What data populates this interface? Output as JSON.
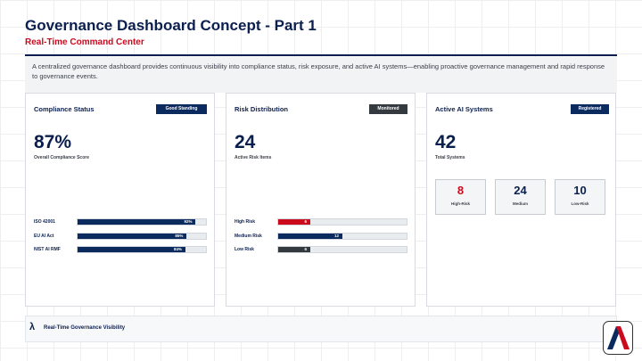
{
  "header": {
    "title": "Governance Dashboard Concept - Part 1",
    "subtitle": "Real-Time Command Center",
    "intro": "A centralized governance dashboard provides continuous visibility into compliance status, risk exposure, and active AI systems—enabling proactive governance management and rapid response to governance events."
  },
  "compliance": {
    "title": "Compliance Status",
    "badge": "Good Standing",
    "badge_color": "#0b2a5e",
    "value": "87%",
    "value_label": "Overall Compliance Score",
    "frameworks": [
      {
        "label": "ISO 42001",
        "percent": 92,
        "text": "92%"
      },
      {
        "label": "EU AI Act",
        "percent": 85,
        "text": "85%"
      },
      {
        "label": "NIST AI RMF",
        "percent": 84,
        "text": "84%"
      }
    ]
  },
  "risk": {
    "title": "Risk Distribution",
    "badge": "Monitored",
    "badge_color": "#343a40",
    "value": "24",
    "value_label": "Active Risk Items",
    "total": 24,
    "levels": [
      {
        "label": "High Risk",
        "count": 6,
        "text": "6",
        "color": "#cc0a1e"
      },
      {
        "label": "Medium Risk",
        "count": 12,
        "text": "12",
        "color": "#0b2a5e"
      },
      {
        "label": "Low Risk",
        "count": 6,
        "text": "6",
        "color": "#343a40"
      }
    ]
  },
  "systems": {
    "title": "Active AI Systems",
    "badge": "Registered",
    "badge_color": "#0b2a5e",
    "value": "42",
    "value_label": "Total Systems",
    "tiles": [
      {
        "num": "8",
        "label": "High-Risk",
        "color": "#cc0a1e"
      },
      {
        "num": "24",
        "label": "Medium",
        "color": "#0b1f4f"
      },
      {
        "num": "10",
        "label": "Low-Risk",
        "color": "#0b1f4f"
      }
    ]
  },
  "footer": {
    "icon": "lambda-icon",
    "text": "Real-Time Governance Visibility"
  },
  "colors": {
    "navy": "#0b1f4f",
    "red": "#cc0a1e",
    "dark_gray": "#343a40"
  }
}
